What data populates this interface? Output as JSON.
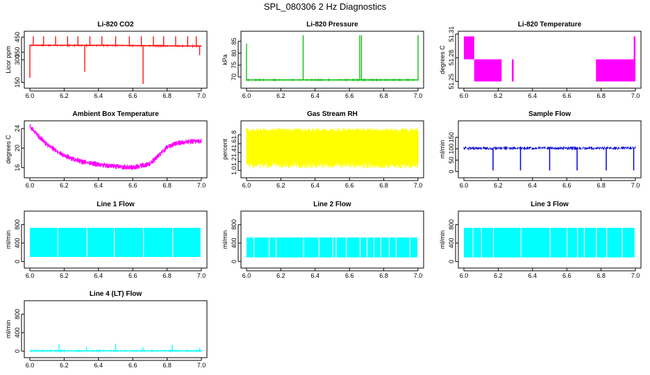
{
  "figure_title": "SPL_080306  2 Hz Diagnostics",
  "chart_data": [
    {
      "type": "line",
      "title": "Li-820 CO2",
      "ylabel": "Licor ppm",
      "xlim": [
        6.0,
        7.0
      ],
      "ylim": [
        130,
        470
      ],
      "xticks": [
        6.0,
        6.2,
        6.4,
        6.6,
        6.8,
        7.0
      ],
      "xtick_labels": [
        "6.0",
        "6.2",
        "6.4",
        "6.6",
        "6.8",
        "7.0"
      ],
      "yticks": [
        150,
        300,
        350,
        450
      ],
      "ytick_labels": [
        "150",
        "300",
        "350",
        "450"
      ],
      "color": "#ff0000",
      "baseline": [
        [
          6.0,
          395
        ],
        [
          6.5,
          395
        ],
        [
          7.0,
          390
        ]
      ],
      "spikes": [
        [
          6.0,
          180
        ],
        [
          6.32,
          220
        ],
        [
          6.66,
          140
        ],
        [
          6.99,
          330
        ],
        [
          6.02,
          455
        ],
        [
          6.08,
          455
        ],
        [
          6.15,
          455
        ],
        [
          6.22,
          455
        ],
        [
          6.28,
          455
        ],
        [
          6.35,
          455
        ],
        [
          6.42,
          455
        ],
        [
          6.5,
          455
        ],
        [
          6.58,
          455
        ],
        [
          6.65,
          455
        ],
        [
          6.72,
          455
        ],
        [
          6.78,
          455
        ],
        [
          6.85,
          455
        ],
        [
          6.92,
          455
        ],
        [
          6.97,
          455
        ]
      ]
    },
    {
      "type": "line",
      "title": "Li-820 Pressure",
      "ylabel": "kPa",
      "xlim": [
        6.0,
        7.0
      ],
      "ylim": [
        66.5,
        88
      ],
      "xticks": [
        6.0,
        6.2,
        6.4,
        6.6,
        6.8,
        7.0
      ],
      "xtick_labels": [
        "6.0",
        "6.2",
        "6.4",
        "6.6",
        "6.8",
        "7.0"
      ],
      "yticks": [
        70,
        75,
        80,
        85
      ],
      "ytick_labels": [
        "70",
        "75",
        "80",
        "85"
      ],
      "color": "#00bb00",
      "baseline": [
        [
          6.0,
          68.8
        ],
        [
          7.0,
          68.8
        ]
      ],
      "spikes": [
        [
          6.0,
          84
        ],
        [
          6.33,
          87.5
        ],
        [
          6.66,
          87.5
        ],
        [
          6.67,
          87.5
        ],
        [
          7.0,
          87.5
        ]
      ]
    },
    {
      "type": "step",
      "title": "Li-820 Temperature",
      "ylabel": "degrees C",
      "xlim": [
        6.0,
        7.0
      ],
      "ylim": [
        51.245,
        51.31
      ],
      "xticks": [
        6.0,
        6.2,
        6.4,
        6.6,
        6.8,
        7.0
      ],
      "xtick_labels": [
        "6.0",
        "6.2",
        "6.4",
        "6.6",
        "6.8",
        "7.0"
      ],
      "yticks": [
        51.25,
        51.28,
        51.31
      ],
      "ytick_labels": [
        "51.25",
        "51.28",
        "51.31"
      ],
      "color": "#ff00ff",
      "bands": [
        [
          6.0,
          6.06,
          51.278,
          51.307
        ],
        [
          6.06,
          6.22,
          51.25,
          51.278
        ],
        [
          6.28,
          6.29,
          51.25,
          51.278
        ],
        [
          6.77,
          6.99,
          51.25,
          51.278
        ],
        [
          6.99,
          7.0,
          51.25,
          51.307
        ]
      ]
    },
    {
      "type": "line",
      "title": "Ambient Box Temperature",
      "ylabel": "degrees C",
      "xlim": [
        6.0,
        7.0
      ],
      "ylim": [
        14.5,
        25
      ],
      "xticks": [
        6.0,
        6.2,
        6.4,
        6.6,
        6.8,
        7.0
      ],
      "xtick_labels": [
        "6.0",
        "6.2",
        "6.4",
        "6.6",
        "6.8",
        "7.0"
      ],
      "yticks": [
        16,
        20,
        24
      ],
      "ytick_labels": [
        "16",
        "20",
        "24"
      ],
      "color": "#ff00ff",
      "curve": [
        [
          6.0,
          24.5
        ],
        [
          6.05,
          22.5
        ],
        [
          6.1,
          20.8
        ],
        [
          6.2,
          18.5
        ],
        [
          6.3,
          17.3
        ],
        [
          6.4,
          16.7
        ],
        [
          6.5,
          16.3
        ],
        [
          6.6,
          16.1
        ],
        [
          6.7,
          16.8
        ],
        [
          6.75,
          18.5
        ],
        [
          6.8,
          20.2
        ],
        [
          6.85,
          21.0
        ],
        [
          6.9,
          21.3
        ],
        [
          7.0,
          21.5
        ]
      ],
      "noise": 0.6
    },
    {
      "type": "band",
      "title": "Gas Stream RH",
      "ylabel": "percent",
      "xlim": [
        6.0,
        7.0
      ],
      "ylim": [
        0.9,
        2.05
      ],
      "xticks": [
        6.0,
        6.2,
        6.4,
        6.6,
        6.8,
        7.0
      ],
      "xtick_labels": [
        "6.0",
        "6.2",
        "6.4",
        "6.6",
        "6.8",
        "7.0"
      ],
      "yticks": [
        1.0,
        1.2,
        1.4,
        1.6,
        1.8
      ],
      "ytick_labels": [
        "1.0",
        "1.2",
        "1.4",
        "1.6",
        "1.8"
      ],
      "color": "#ffff00",
      "band_low": 1.05,
      "band_high": 1.95,
      "core_low": 1.2,
      "core_high": 1.85
    },
    {
      "type": "line",
      "title": "Sample Flow",
      "ylabel": "ml/min",
      "xlim": [
        6.0,
        7.0
      ],
      "ylim": [
        -15,
        210
      ],
      "xticks": [
        6.0,
        6.2,
        6.4,
        6.6,
        6.8,
        7.0
      ],
      "xtick_labels": [
        "6.0",
        "6.2",
        "6.4",
        "6.6",
        "6.8",
        "7.0"
      ],
      "yticks": [
        0,
        50,
        100,
        150
      ],
      "ytick_labels": [
        "0",
        "50",
        "100",
        "150"
      ],
      "color": "#0000dd",
      "baseline": [
        [
          6.0,
          105
        ],
        [
          7.0,
          105
        ]
      ],
      "noise": 10,
      "dips": [
        6.17,
        6.33,
        6.5,
        6.66,
        6.83,
        6.99
      ],
      "dip_value": 5
    },
    {
      "type": "band",
      "title": "Line 1 Flow",
      "ylabel": "ml/min",
      "xlim": [
        6.0,
        7.0
      ],
      "ylim": [
        -80,
        1030
      ],
      "xticks": [
        6.0,
        6.2,
        6.4,
        6.6,
        6.8,
        7.0
      ],
      "xtick_labels": [
        "6.0",
        "6.2",
        "6.4",
        "6.6",
        "6.8",
        "7.0"
      ],
      "yticks": [
        0,
        400,
        800
      ],
      "ytick_labels": [
        "0",
        "400",
        "800"
      ],
      "color": "#00ffff",
      "band_low": 100,
      "band_high": 730,
      "gaps": [
        6.16,
        6.33,
        6.49,
        6.66,
        6.83
      ]
    },
    {
      "type": "band",
      "title": "Line 2 Flow",
      "ylabel": "ml/min",
      "xlim": [
        6.0,
        7.0
      ],
      "ylim": [
        -80,
        1030
      ],
      "xticks": [
        6.0,
        6.2,
        6.4,
        6.6,
        6.8,
        7.0
      ],
      "xtick_labels": [
        "6.0",
        "6.2",
        "6.4",
        "6.6",
        "6.8",
        "7.0"
      ],
      "yticks": [
        0,
        400,
        800
      ],
      "ytick_labels": [
        "0",
        "400",
        "800"
      ],
      "color": "#00ffff",
      "band_low": 90,
      "band_high": 520,
      "gaps": [
        6.04,
        6.13,
        6.17,
        6.33,
        6.42,
        6.5,
        6.52,
        6.58,
        6.66,
        6.7,
        6.74,
        6.78,
        6.83,
        6.87,
        6.95
      ]
    },
    {
      "type": "band",
      "title": "Line 3 Flow",
      "ylabel": "ml/min",
      "xlim": [
        6.0,
        7.0
      ],
      "ylim": [
        -80,
        1030
      ],
      "xticks": [
        6.0,
        6.2,
        6.4,
        6.6,
        6.8,
        7.0
      ],
      "xtick_labels": [
        "6.0",
        "6.2",
        "6.4",
        "6.6",
        "6.8",
        "7.0"
      ],
      "yticks": [
        0,
        400,
        800
      ],
      "ytick_labels": [
        "0",
        "400",
        "800"
      ],
      "color": "#00ffff",
      "band_low": 90,
      "band_high": 730,
      "gaps": [
        6.05,
        6.1,
        6.17,
        6.33,
        6.5,
        6.6,
        6.66,
        6.7,
        6.77,
        6.83,
        6.92
      ]
    },
    {
      "type": "line",
      "title": "Line 4 (LT) Flow",
      "ylabel": "ml/min",
      "xlim": [
        6.0,
        7.0
      ],
      "ylim": [
        -80,
        1030
      ],
      "xticks": [
        6.0,
        6.2,
        6.4,
        6.6,
        6.8,
        7.0
      ],
      "xtick_labels": [
        "6.0",
        "6.2",
        "6.4",
        "6.6",
        "6.8",
        "7.0"
      ],
      "yticks": [
        0,
        400,
        800
      ],
      "ytick_labels": [
        "0",
        "400",
        "800"
      ],
      "color": "#00ffff",
      "baseline": [
        [
          6.0,
          5
        ],
        [
          7.0,
          5
        ]
      ],
      "spikes": [
        [
          6.17,
          150
        ],
        [
          6.33,
          90
        ],
        [
          6.5,
          160
        ],
        [
          6.66,
          80
        ],
        [
          6.83,
          140
        ],
        [
          6.99,
          70
        ]
      ]
    }
  ]
}
